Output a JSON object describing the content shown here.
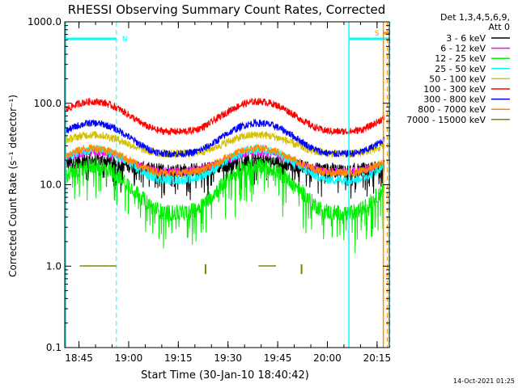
{
  "chart_data": {
    "type": "line",
    "title": "RHESSI Observing Summary Count Rates, Corrected",
    "xlabel": "Start Time (30-Jan-10 18:40:42)",
    "ylabel": "Corrected Count Rate (s⁻¹ detector⁻¹)",
    "y_scale": "log",
    "ylim": [
      0.1,
      1000
    ],
    "xlim_minutes": [
      0,
      98
    ],
    "x_ticks": [
      {
        "m": 4.3,
        "label": "18:45"
      },
      {
        "m": 19.3,
        "label": "19:00"
      },
      {
        "m": 34.3,
        "label": "19:15"
      },
      {
        "m": 49.3,
        "label": "19:30"
      },
      {
        "m": 64.3,
        "label": "19:45"
      },
      {
        "m": 79.3,
        "label": "20:00"
      },
      {
        "m": 94.3,
        "label": "20:15"
      }
    ],
    "y_ticks": [
      {
        "v": 1000,
        "label": "1000.0"
      },
      {
        "v": 100,
        "label": "100.0"
      },
      {
        "v": 10,
        "label": "10.0"
      },
      {
        "v": 1,
        "label": "1.0"
      },
      {
        "v": 0.1,
        "label": "0.1"
      }
    ],
    "legend_header": [
      "Det 1,3,4,5,6,9,",
      "Att 0"
    ],
    "legend_position": "right",
    "series": [
      {
        "name": "3 - 6 keV",
        "color": "#000000",
        "min": 15,
        "max": 20,
        "noise": 0.09,
        "dip": 0.2
      },
      {
        "name": "6 - 12 keV",
        "color": "#ff00ff",
        "min": 14.5,
        "max": 25,
        "noise": 0.05,
        "dip": 0
      },
      {
        "name": "12 - 25 keV",
        "color": "#00ee00",
        "min": 4.5,
        "max": 17,
        "noise": 0.1,
        "dip": 0.3
      },
      {
        "name": "25 - 50 keV",
        "color": "#00ffff",
        "min": 11.5,
        "max": 27,
        "noise": 0.06,
        "dip": 0
      },
      {
        "name": "50 - 100 keV",
        "color": "#d4c000",
        "min": 24,
        "max": 41,
        "noise": 0.05,
        "dip": 0
      },
      {
        "name": "100 - 300 keV",
        "color": "#ff0000",
        "min": 45,
        "max": 105,
        "noise": 0.045,
        "dip": 0
      },
      {
        "name": "300 - 800 keV",
        "color": "#0000ff",
        "min": 24,
        "max": 57,
        "noise": 0.045,
        "dip": 0
      },
      {
        "name": "800 - 7000 keV",
        "color": "#ff8c00",
        "min": 14,
        "max": 28,
        "noise": 0.05,
        "dip": 0
      },
      {
        "name": "7000 - 15000 keV",
        "color": "#808000",
        "min": 1.0,
        "max": 1.0,
        "noise": 0,
        "dip": 0
      }
    ],
    "annotations": {
      "night_label": "N",
      "saa_label": "S",
      "night_marker_color": "#00ffff",
      "saa_marker_color": "#ff8c00",
      "night_start_m": 0.3,
      "night_end_m": 15.6,
      "night2_start_m": 85.8,
      "saa_start_m": 96.2,
      "saa_end_m": 97.4
    },
    "timestamp": "14-Oct-2021 01:25"
  }
}
